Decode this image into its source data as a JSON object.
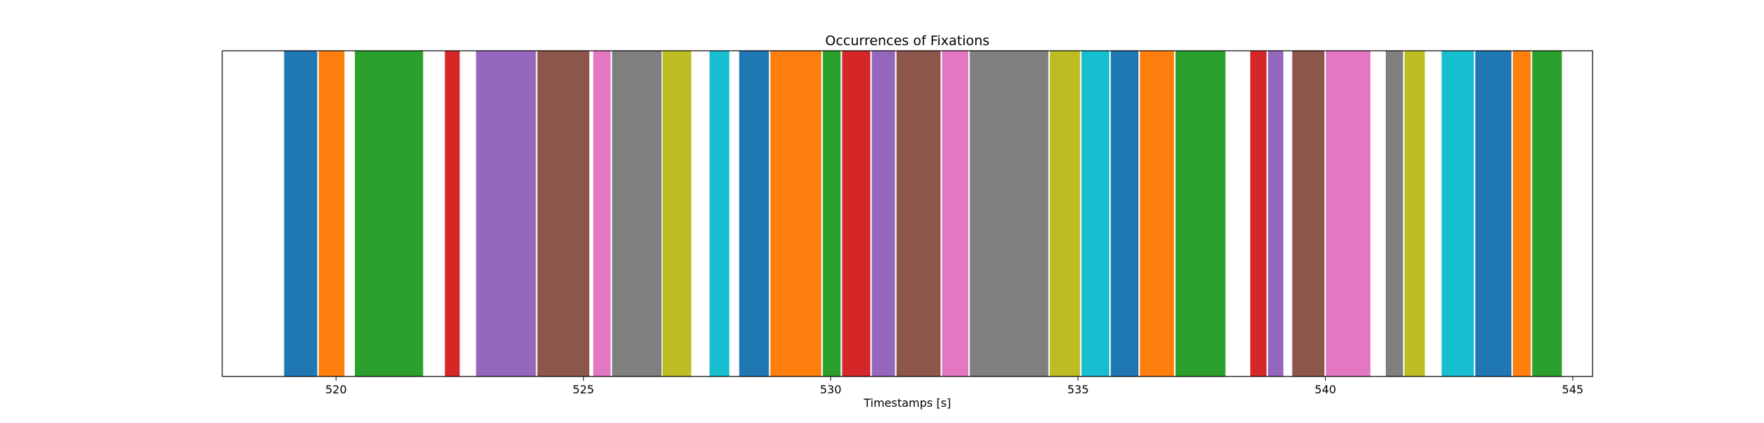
{
  "chart_data": {
    "type": "bar",
    "title": "Occurrences of Fixations",
    "xlabel": "Timestamps [s]",
    "ylabel": "",
    "xlim": [
      517.7,
      545.4
    ],
    "xticks": [
      520,
      525,
      530,
      535,
      540,
      545
    ],
    "grid": false,
    "legend": "none",
    "palette": [
      "#1f77b4",
      "#ff7f0e",
      "#2ca02c",
      "#d62728",
      "#9467bd",
      "#8c564b",
      "#e377c2",
      "#7f7f7f",
      "#bcbd22",
      "#17becf"
    ],
    "fixations": [
      {
        "start": 518.95,
        "end": 519.62
      },
      {
        "start": 519.65,
        "end": 520.17
      },
      {
        "start": 520.38,
        "end": 521.76
      },
      {
        "start": 522.2,
        "end": 522.5
      },
      {
        "start": 522.83,
        "end": 524.04
      },
      {
        "start": 524.07,
        "end": 525.12
      },
      {
        "start": 525.2,
        "end": 525.55
      },
      {
        "start": 525.58,
        "end": 526.58
      },
      {
        "start": 526.6,
        "end": 527.18
      },
      {
        "start": 527.55,
        "end": 527.95
      },
      {
        "start": 528.15,
        "end": 528.75
      },
      {
        "start": 528.78,
        "end": 529.81
      },
      {
        "start": 529.84,
        "end": 530.2
      },
      {
        "start": 530.23,
        "end": 530.8
      },
      {
        "start": 530.83,
        "end": 531.3
      },
      {
        "start": 531.33,
        "end": 532.22
      },
      {
        "start": 532.25,
        "end": 532.78
      },
      {
        "start": 532.81,
        "end": 534.4
      },
      {
        "start": 534.43,
        "end": 535.04
      },
      {
        "start": 535.07,
        "end": 535.63
      },
      {
        "start": 535.66,
        "end": 536.22
      },
      {
        "start": 536.25,
        "end": 536.94
      },
      {
        "start": 536.97,
        "end": 537.98
      },
      {
        "start": 538.48,
        "end": 538.81
      },
      {
        "start": 538.84,
        "end": 539.15
      },
      {
        "start": 539.33,
        "end": 539.98
      },
      {
        "start": 540.01,
        "end": 540.91
      },
      {
        "start": 541.22,
        "end": 541.57
      },
      {
        "start": 541.6,
        "end": 542.01
      },
      {
        "start": 542.35,
        "end": 543.0
      },
      {
        "start": 543.03,
        "end": 543.76
      },
      {
        "start": 543.79,
        "end": 544.15
      },
      {
        "start": 544.18,
        "end": 544.78
      }
    ]
  }
}
